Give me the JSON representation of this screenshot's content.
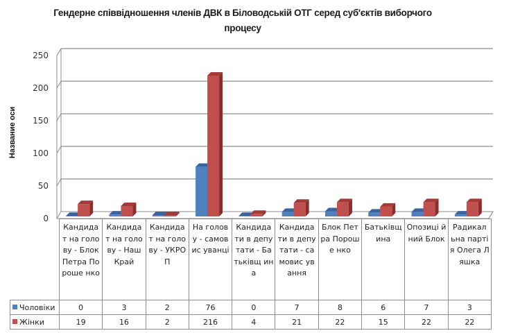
{
  "chart_data": {
    "type": "bar",
    "variant": "3d-clustered-column-with-data-table",
    "title": "Гендерне співвідношення членів ДВК в Біловодській ОТГ серед суб'єктів виборчого процесу",
    "title_lines": [
      "Гендерне співвідношення членів ДВК в Біловодській ОТГ серед суб'єктів виборчого",
      "процесу"
    ],
    "xlabel": "",
    "ylabel": "Название оси",
    "ylim": [
      0,
      250
    ],
    "yticks": [
      0,
      50,
      100,
      150,
      200,
      250
    ],
    "grid": true,
    "legend_position": "data-table",
    "categories": [
      "Кандидат на голову - Блок Петра Порошенко",
      "Кандидат на голову - Наш Край",
      "Кандидат на голову - УКРОП",
      "На голову - самовисуванці",
      "Кандидати в депутати - Батьківщина",
      "Кандидати в депутати - самовисування",
      "Блок Петра Порошенко",
      "Батьківщина",
      "Опозиційний Блок",
      "Радикальна партія Олега Ляшка"
    ],
    "category_labels_wrapped": [
      "Кандида т на голову - Блок Петра Пороше нко",
      "Кандида т на голову - Наш Край",
      "Кандида т на голову - УКРОП",
      "На голову - самовис уванці",
      "Кандида ти в депутати - Батьківщ ина",
      "Кандида ти в депутати - самовис ування",
      "Блок Петра Пороше нко",
      "Батьківщ ина",
      "Опозиці йний Блок",
      "Радикал ьна партія Олега Ляшка"
    ],
    "series": [
      {
        "name": "Чоловіки",
        "color": "#4f81bd",
        "values": [
          0,
          3,
          2,
          76,
          0,
          7,
          8,
          6,
          7,
          3
        ]
      },
      {
        "name": "Жінки",
        "color": "#c0504d",
        "values": [
          19,
          16,
          2,
          216,
          4,
          21,
          22,
          15,
          22,
          22
        ]
      }
    ]
  },
  "colors": {
    "male": "#4f81bd",
    "male_top": "#3a64a0",
    "male_side": "#2f5487",
    "female": "#c0504d",
    "female_top": "#a33a37",
    "female_side": "#8a2e2c",
    "grid": "#8c8c8c"
  }
}
